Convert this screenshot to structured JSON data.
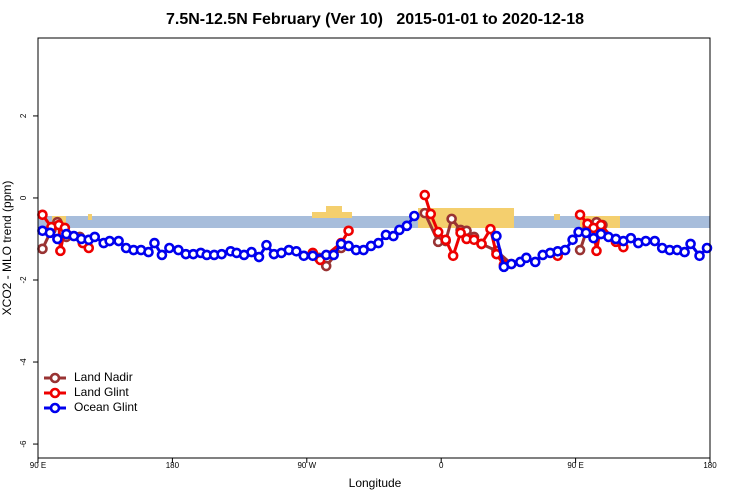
{
  "chart_data": {
    "type": "line",
    "title": "7.5N-12.5N February (Ver 10)   2015-01-01 to 2020-12-18",
    "x_label": "Longitude",
    "y_label": "XCO2 - MLO trend (ppm)",
    "xlim": [
      90,
      540
    ],
    "xticks": [
      {
        "value": 90,
        "label": "90 E"
      },
      180,
      {
        "value": 270,
        "label": "90 W"
      },
      {
        "value": 360,
        "label": "0"
      },
      {
        "value": 450,
        "label": "90 E"
      },
      {
        "value": 540,
        "label": "180"
      }
    ],
    "ylim": [
      -6.34,
      3.9
    ],
    "yticks": [
      -6,
      -4,
      -2,
      0,
      2
    ],
    "legend": "bottom-left",
    "series": [
      {
        "name": "Land Nadir",
        "color": "#993333",
        "x": [
          93,
          99,
          103,
          109,
          118,
          null,
          274,
          278,
          283,
          293,
          null,
          349,
          358,
          363,
          367,
          373,
          377,
          382,
          387,
          397,
          407,
          null,
          453,
          458,
          464,
          468
        ],
        "values": [
          -1.24,
          -0.78,
          -0.59,
          -0.95,
          -0.95,
          null,
          -1.39,
          -1.46,
          -1.66,
          -1.22,
          null,
          -0.37,
          -1.07,
          -1.05,
          -0.51,
          -0.78,
          -0.8,
          -0.95,
          -1.12,
          -1.29,
          -1.61,
          null,
          -1.27,
          -0.73,
          -0.59,
          -0.66
        ]
      },
      {
        "name": "Land Glint",
        "color": "#ee0000",
        "x": [
          93,
          99,
          104,
          105,
          108,
          120,
          124,
          null,
          274,
          279,
          293,
          298,
          null,
          349,
          353,
          358,
          363,
          368,
          373,
          377,
          382,
          387,
          393,
          397,
          402,
          null,
          438,
          null,
          453,
          458,
          462,
          464,
          467,
          477,
          482
        ],
        "values": [
          -0.41,
          -0.71,
          -0.66,
          -1.29,
          -0.73,
          -1.1,
          -1.22,
          null,
          -1.34,
          -1.51,
          -1.1,
          -0.8,
          null,
          0.07,
          -0.39,
          -0.83,
          -1.02,
          -1.41,
          -0.85,
          -1.0,
          -1.02,
          -1.12,
          -0.76,
          -1.37,
          -1.63,
          null,
          -1.41,
          null,
          -0.41,
          -0.63,
          -0.73,
          -1.29,
          -0.66,
          -1.07,
          -1.2
        ]
      },
      {
        "name": "Ocean Glint",
        "color": "#0000ee",
        "x": [
          93,
          98,
          103,
          109,
          114,
          119,
          124,
          128,
          134,
          138,
          144,
          149,
          154,
          159,
          164,
          168,
          173,
          178,
          184,
          189,
          194,
          199,
          203,
          208,
          213,
          219,
          223,
          228,
          233,
          238,
          243,
          248,
          253,
          258,
          263,
          268,
          274,
          283,
          288,
          293,
          298,
          303,
          308,
          313,
          318,
          323,
          328,
          332,
          337,
          342,
          null,
          397,
          402,
          407,
          413,
          417,
          423,
          428,
          433,
          438,
          443,
          448,
          452,
          457,
          462,
          467,
          472,
          477,
          482,
          487,
          492,
          497,
          503,
          508,
          513,
          518,
          523,
          527,
          533,
          538
        ],
        "values": [
          -0.8,
          -0.85,
          -1.0,
          -0.88,
          -0.93,
          -1.0,
          -1.02,
          -0.95,
          -1.1,
          -1.05,
          -1.05,
          -1.22,
          -1.27,
          -1.27,
          -1.32,
          -1.1,
          -1.39,
          -1.22,
          -1.27,
          -1.37,
          -1.37,
          -1.34,
          -1.39,
          -1.39,
          -1.37,
          -1.3,
          -1.34,
          -1.39,
          -1.32,
          -1.44,
          -1.15,
          -1.37,
          -1.34,
          -1.27,
          -1.3,
          -1.41,
          -1.41,
          -1.39,
          -1.39,
          -1.12,
          -1.17,
          -1.27,
          -1.27,
          -1.17,
          -1.1,
          -0.9,
          -0.93,
          -0.78,
          -0.68,
          -0.44,
          null,
          -0.93,
          -1.68,
          -1.61,
          -1.56,
          -1.46,
          -1.56,
          -1.39,
          -1.34,
          -1.3,
          -1.27,
          -1.02,
          -0.83,
          -0.85,
          -0.98,
          -0.88,
          -0.95,
          -1.0,
          -1.05,
          -0.98,
          -1.1,
          -1.05,
          -1.05,
          -1.22,
          -1.27,
          -1.27,
          -1.32,
          -1.12,
          -1.41,
          -1.22
        ]
      }
    ]
  }
}
